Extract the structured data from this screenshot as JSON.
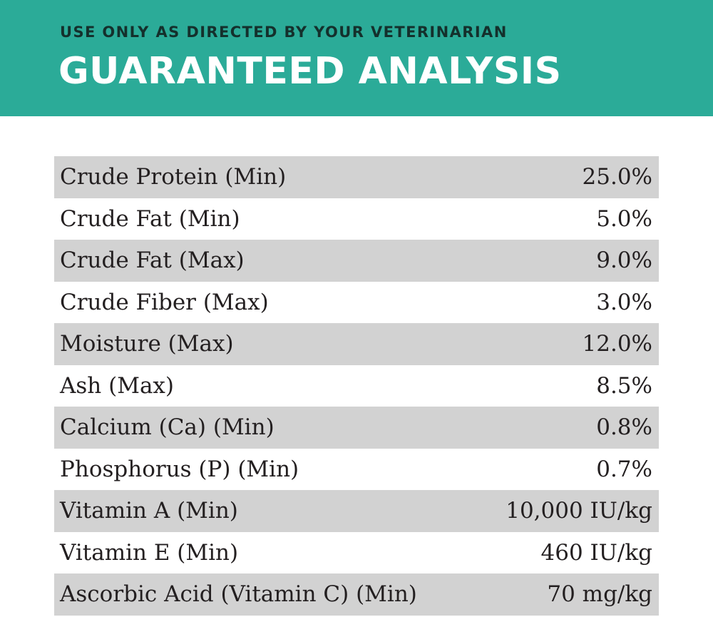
{
  "header": {
    "subtitle": "USE ONLY AS DIRECTED BY YOUR VETERINARIAN",
    "title": "GUARANTEED ANALYSIS",
    "background_color": "#2bab98"
  },
  "table": {
    "rows": [
      {
        "label": "Crude Protein (Min)",
        "value": "25.0%"
      },
      {
        "label": "Crude Fat (Min)",
        "value": "5.0%"
      },
      {
        "label": "Crude Fat (Max)",
        "value": "9.0%"
      },
      {
        "label": "Crude Fiber (Max)",
        "value": "3.0%"
      },
      {
        "label": "Moisture (Max)",
        "value": "12.0%"
      },
      {
        "label": "Ash (Max)",
        "value": "8.5%"
      },
      {
        "label": "Calcium (Ca) (Min)",
        "value": "0.8%"
      },
      {
        "label": "Phosphorus (P) (Min)",
        "value": "0.7%"
      },
      {
        "label": "Vitamin A (Min)",
        "value": "10,000 IU/kg"
      },
      {
        "label": "Vitamin E (Min)",
        "value": "460 IU/kg"
      },
      {
        "label": "Ascorbic Acid (Vitamin C) (Min)",
        "value": "70 mg/kg"
      }
    ],
    "shaded_row_color": "#d2d2d2"
  }
}
